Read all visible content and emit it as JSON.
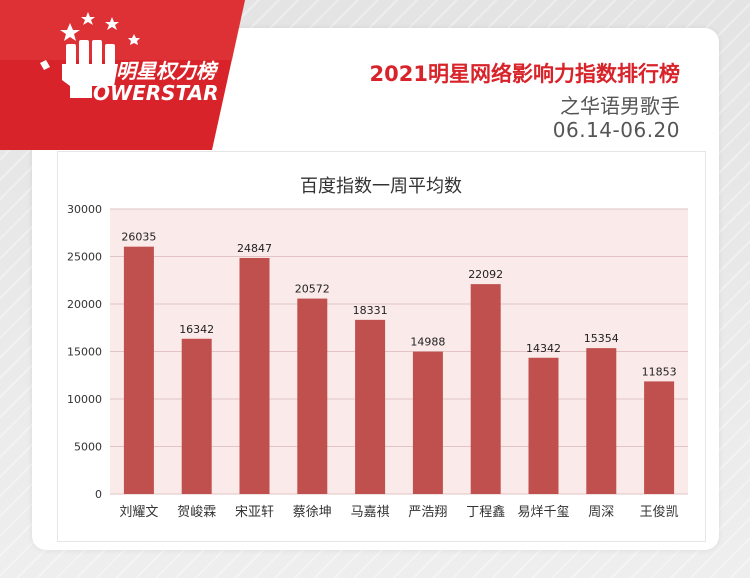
{
  "logo": {
    "brand_cn": "明星权力榜",
    "brand_en": "OWERSTAR"
  },
  "header": {
    "title": "2021明星网络影响力指数排行榜",
    "subtitle": "之华语男歌手",
    "date_range": "06.14-06.20"
  },
  "colors": {
    "bar": "#c0504d",
    "plot_bg": "#fbeaea",
    "accent": "#d8232a"
  },
  "chart_data": {
    "type": "bar",
    "title": "百度指数一周平均数",
    "categories": [
      "刘耀文",
      "贺峻霖",
      "宋亚轩",
      "蔡徐坤",
      "马嘉祺",
      "严浩翔",
      "丁程鑫",
      "易烊千玺",
      "周深",
      "王俊凯"
    ],
    "values": [
      26035,
      16342,
      24847,
      20572,
      18331,
      14988,
      22092,
      14342,
      15354,
      11853
    ],
    "xlabel": "",
    "ylabel": "",
    "ylim": [
      0,
      30000
    ],
    "yticks": [
      0,
      5000,
      10000,
      15000,
      20000,
      25000,
      30000
    ],
    "grid": true,
    "legend": "none",
    "data_labels": true
  }
}
